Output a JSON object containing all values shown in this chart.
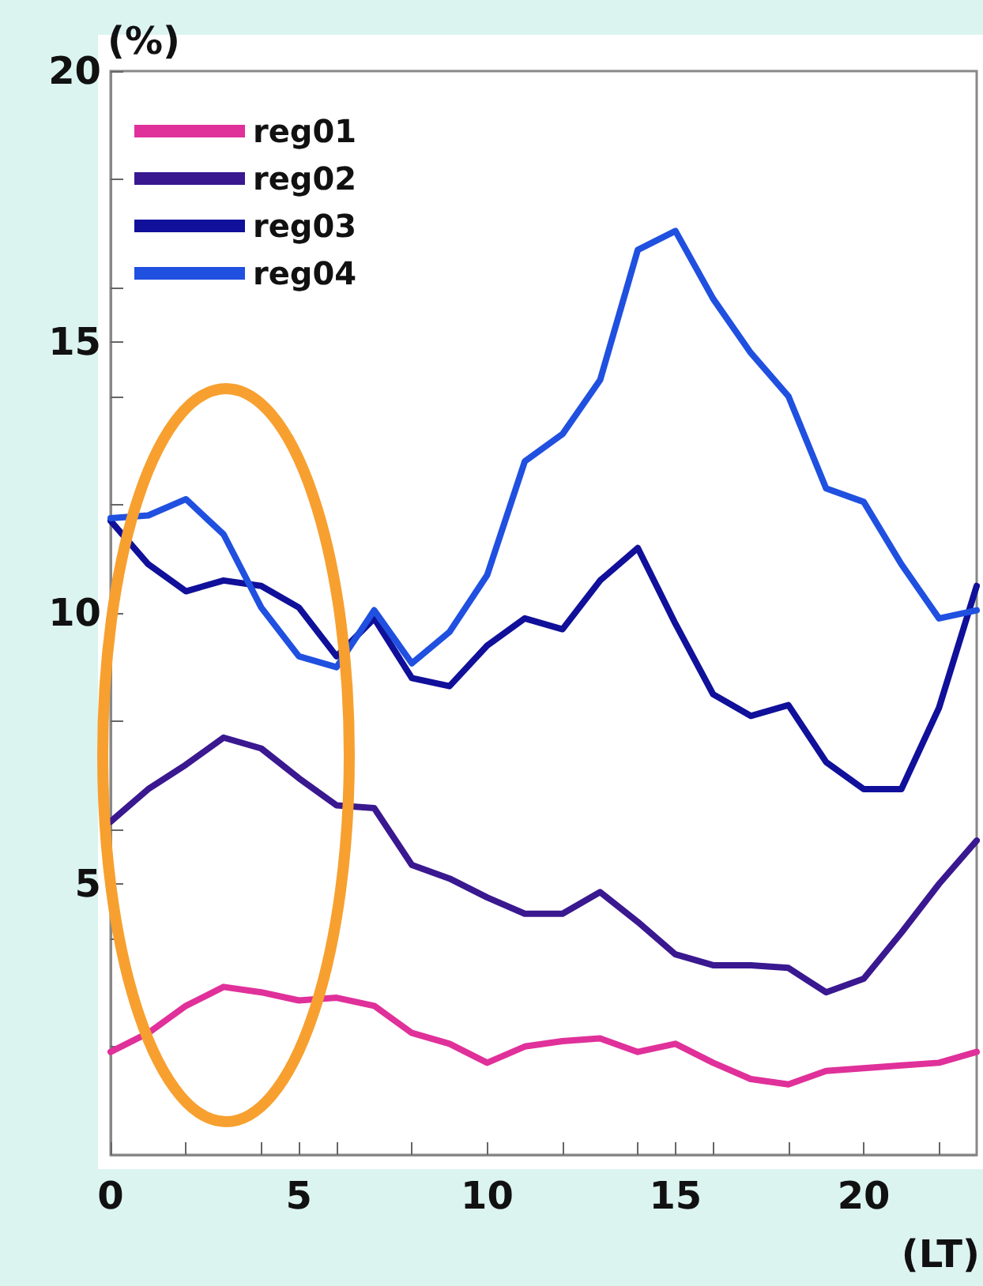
{
  "chart_data": {
    "type": "line",
    "xlabel": "(LT)",
    "ylabel": "(%)",
    "x": [
      0,
      1,
      2,
      3,
      4,
      5,
      6,
      7,
      8,
      9,
      10,
      11,
      12,
      13,
      14,
      15,
      16,
      17,
      18,
      19,
      20,
      21,
      22,
      23
    ],
    "xlim": [
      0,
      23
    ],
    "ylim": [
      0,
      20
    ],
    "xticks": [
      0,
      {
        "value": 2,
        "label": null
      },
      {
        "value": 4,
        "label": null
      },
      5,
      {
        "value": 6,
        "label": null
      },
      {
        "value": 8,
        "label": null
      },
      10,
      {
        "value": 12,
        "label": null
      },
      {
        "value": 14,
        "label": null
      },
      15,
      {
        "value": 16,
        "label": null
      },
      {
        "value": 18,
        "label": null
      },
      20,
      {
        "value": 22,
        "label": null
      }
    ],
    "yticks": [
      {
        "value": 2,
        "label": null
      },
      {
        "value": 4,
        "label": null
      },
      5,
      {
        "value": 6,
        "label": null
      },
      {
        "value": 8,
        "label": null
      },
      10,
      {
        "value": 12,
        "label": null
      },
      {
        "value": 14,
        "label": null
      },
      15,
      {
        "value": 16,
        "label": null
      },
      {
        "value": 18,
        "label": null
      },
      20
    ],
    "grid": false,
    "legend": "top left",
    "marker": "none",
    "line_style": "solid",
    "series": [
      {
        "name": "reg01",
        "color": "#e0309a",
        "values": [
          1.9,
          2.25,
          2.75,
          3.1,
          3.0,
          2.85,
          2.9,
          2.75,
          2.25,
          2.05,
          1.7,
          2.0,
          2.1,
          2.15,
          1.9,
          2.05,
          1.7,
          1.4,
          1.3,
          1.55,
          1.6,
          1.65,
          1.7,
          1.9
        ]
      },
      {
        "name": "reg02",
        "color": "#3a1890",
        "values": [
          6.15,
          6.75,
          7.2,
          7.7,
          7.5,
          6.95,
          6.45,
          6.4,
          5.35,
          5.1,
          4.75,
          4.45,
          4.45,
          4.85,
          4.3,
          3.7,
          3.5,
          3.5,
          3.45,
          3.0,
          3.25,
          4.1,
          5.0,
          5.8
        ]
      },
      {
        "name": "reg03",
        "color": "#10109a",
        "values": [
          11.7,
          10.9,
          10.4,
          10.6,
          10.5,
          10.1,
          9.2,
          9.9,
          8.8,
          8.65,
          9.4,
          9.9,
          9.7,
          10.6,
          11.2,
          9.8,
          8.5,
          8.1,
          8.3,
          7.25,
          6.75,
          6.75,
          8.25,
          10.5
        ]
      },
      {
        "name": "reg04",
        "color": "#2050e0",
        "values": [
          11.75,
          11.8,
          12.1,
          11.45,
          10.1,
          9.2,
          9.0,
          10.05,
          9.07,
          9.65,
          10.7,
          12.8,
          13.3,
          14.3,
          16.7,
          17.05,
          15.8,
          14.8,
          14.0,
          12.3,
          12.05,
          10.9,
          9.9,
          10.05
        ]
      }
    ]
  }
}
